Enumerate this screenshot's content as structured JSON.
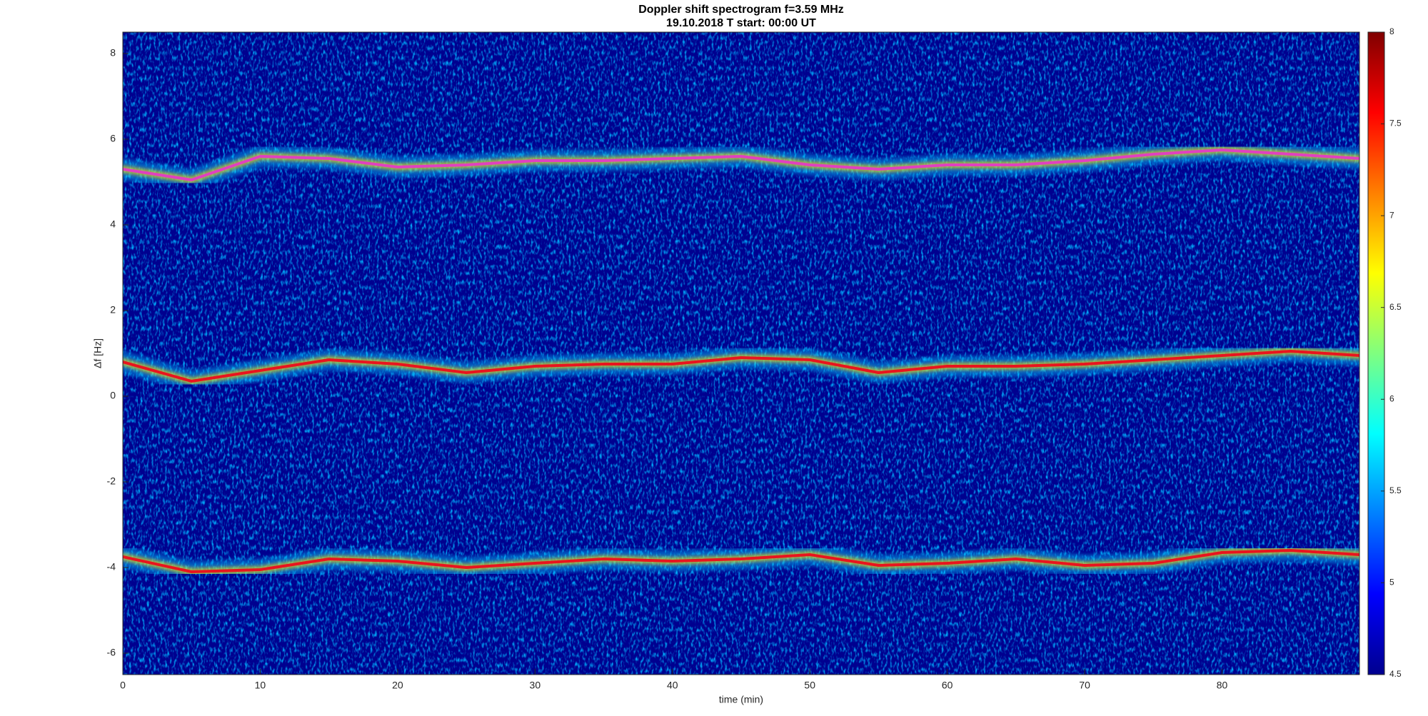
{
  "chart_data": {
    "type": "spectrogram",
    "title": "Doppler shift spectrogram f=3.59 MHz",
    "subtitle": "19.10.2018   T start: 00:00 UT",
    "x_label": "time (min)",
    "y_label": "Δf [Hz]",
    "xlim": [
      0,
      90
    ],
    "ylim": [
      -6.5,
      8.5
    ],
    "xticks": [
      0,
      10,
      20,
      30,
      40,
      50,
      60,
      70,
      80
    ],
    "yticks": [
      -6,
      -4,
      -2,
      0,
      2,
      4,
      6,
      8
    ],
    "clim": [
      4.5,
      8
    ],
    "cticks": [
      4.5,
      5,
      5.5,
      6,
      6.5,
      7,
      7.5,
      8
    ],
    "colormap": "jet",
    "x": [
      0,
      5,
      10,
      15,
      20,
      25,
      30,
      35,
      40,
      45,
      50,
      55,
      60,
      65,
      70,
      75,
      80,
      85,
      90
    ],
    "series": [
      {
        "color": "#e040c0",
        "values": [
          5.3,
          5.05,
          5.6,
          5.55,
          5.35,
          5.4,
          5.5,
          5.5,
          5.55,
          5.6,
          5.4,
          5.3,
          5.4,
          5.4,
          5.5,
          5.65,
          5.75,
          5.65,
          5.55
        ]
      },
      {
        "color": "#e8141e",
        "values": [
          0.8,
          0.35,
          0.6,
          0.85,
          0.75,
          0.55,
          0.7,
          0.75,
          0.75,
          0.9,
          0.85,
          0.55,
          0.7,
          0.7,
          0.75,
          0.85,
          0.95,
          1.05,
          0.95
        ]
      },
      {
        "color": "#e8141e",
        "values": [
          -3.75,
          -4.1,
          -4.05,
          -3.8,
          -3.85,
          -4.0,
          -3.9,
          -3.8,
          -3.85,
          -3.8,
          -3.7,
          -3.95,
          -3.9,
          -3.8,
          -3.95,
          -3.9,
          -3.65,
          -3.6,
          -3.7
        ]
      }
    ]
  }
}
